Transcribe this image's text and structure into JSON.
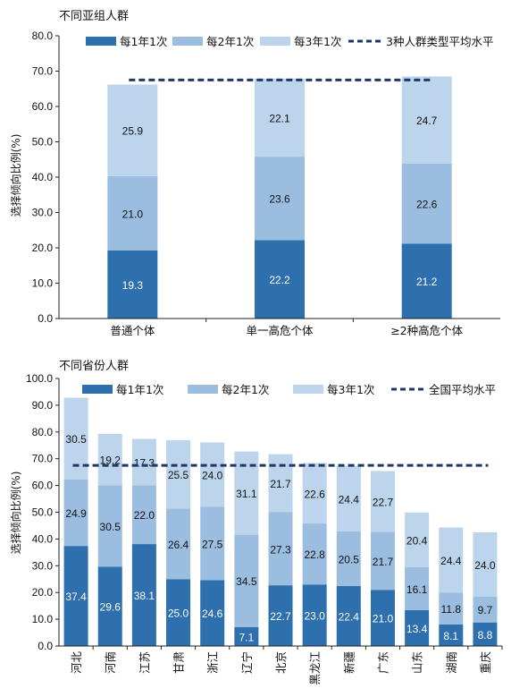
{
  "chart_data": [
    {
      "type": "bar",
      "stacked": true,
      "title": "不同亚组人群",
      "ylabel": "选择倾向比例(%)",
      "ylim": [
        0,
        80
      ],
      "yticks": [
        "0.0",
        "10.0",
        "20.0",
        "30.0",
        "40.0",
        "50.0",
        "60.0",
        "70.0",
        "80.0"
      ],
      "categories": [
        "普通个体",
        "单一高危个体",
        "≥2种高危个体"
      ],
      "series": [
        {
          "name": "每1年1次",
          "color": "#2e6fad",
          "values": [
            19.3,
            22.2,
            21.2
          ]
        },
        {
          "name": "每2年1次",
          "color": "#9bbde0",
          "values": [
            21.0,
            23.6,
            22.6
          ]
        },
        {
          "name": "每3年1次",
          "color": "#bcd4ec",
          "values": [
            25.9,
            22.1,
            24.7
          ]
        }
      ],
      "reference_line": {
        "name": "3种人群类型平均水平",
        "value": 67.5,
        "color": "#1f3864",
        "style": "dashed"
      },
      "legend": "top"
    },
    {
      "type": "bar",
      "stacked": true,
      "title": "不同省份人群",
      "ylabel": "选择倾向比例(%)",
      "ylim": [
        0,
        100
      ],
      "yticks": [
        "0.0",
        "10.0",
        "20.0",
        "30.0",
        "40.0",
        "50.0",
        "60.0",
        "70.0",
        "80.0",
        "90.0",
        "100.0"
      ],
      "categories": [
        "河北",
        "河南",
        "江苏",
        "甘肃",
        "浙江",
        "辽宁",
        "北京",
        "黑龙江",
        "新疆",
        "广东",
        "山东",
        "湖南",
        "重庆"
      ],
      "series": [
        {
          "name": "每1年1次",
          "color": "#2e6fad",
          "values": [
            37.4,
            29.6,
            38.1,
            25.0,
            24.6,
            7.1,
            22.7,
            23.0,
            22.4,
            21.0,
            13.4,
            8.1,
            8.8
          ]
        },
        {
          "name": "每2年1次",
          "color": "#9bbde0",
          "values": [
            24.9,
            30.5,
            22.0,
            26.4,
            27.5,
            34.5,
            27.3,
            22.8,
            20.5,
            21.7,
            16.1,
            11.8,
            9.7
          ]
        },
        {
          "name": "每3年1次",
          "color": "#bcd4ec",
          "values": [
            30.5,
            19.2,
            17.3,
            25.5,
            24.0,
            31.1,
            21.7,
            22.6,
            24.4,
            22.7,
            20.4,
            24.4,
            24.0
          ]
        }
      ],
      "reference_line": {
        "name": "全国平均水平",
        "value": 67.5,
        "color": "#1f3864",
        "style": "dashed"
      },
      "legend": "top"
    }
  ]
}
